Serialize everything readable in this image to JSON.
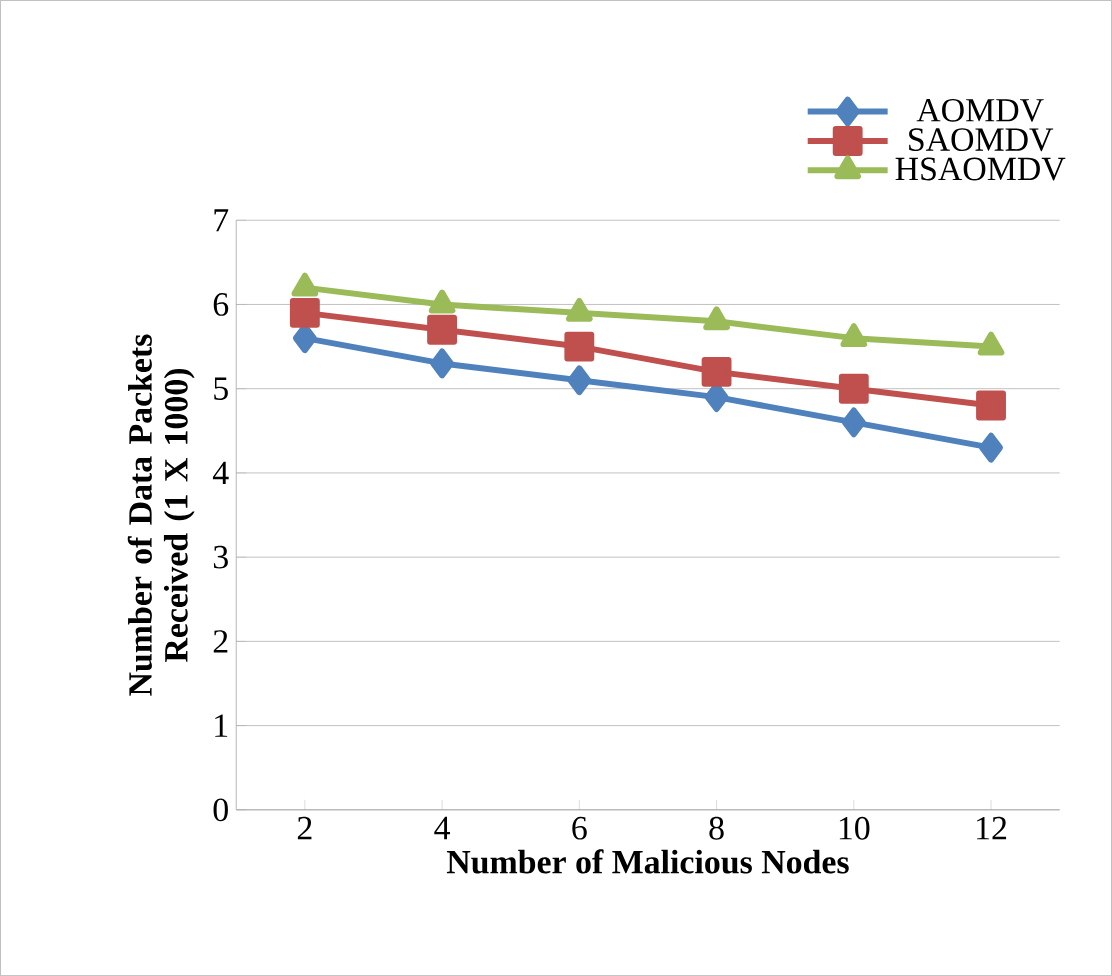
{
  "chart_data": {
    "type": "line",
    "xlabel": "Number of Malicious Nodes",
    "ylabel": "Number of Data Packets Received (1 X 1000)",
    "categories": [
      "2",
      "4",
      "6",
      "8",
      "10",
      "12"
    ],
    "series": [
      {
        "name": "AOMDV",
        "color": "#4f81bd",
        "marker": "diamond",
        "values": [
          5.6,
          5.3,
          5.1,
          4.9,
          4.6,
          4.3
        ]
      },
      {
        "name": "SAOMDV",
        "color": "#c0504d",
        "marker": "square",
        "values": [
          5.9,
          5.7,
          5.5,
          5.2,
          5.0,
          4.8
        ]
      },
      {
        "name": "HSAOMDV",
        "color": "#9bbb59",
        "marker": "triangle",
        "values": [
          6.2,
          6.0,
          5.9,
          5.8,
          5.6,
          5.5
        ]
      }
    ],
    "ylim": [
      0,
      7
    ],
    "yticks": [
      0,
      1,
      2,
      3,
      4,
      5,
      6,
      7
    ],
    "grid": "y",
    "legend": "top right",
    "line_style": "solid"
  }
}
